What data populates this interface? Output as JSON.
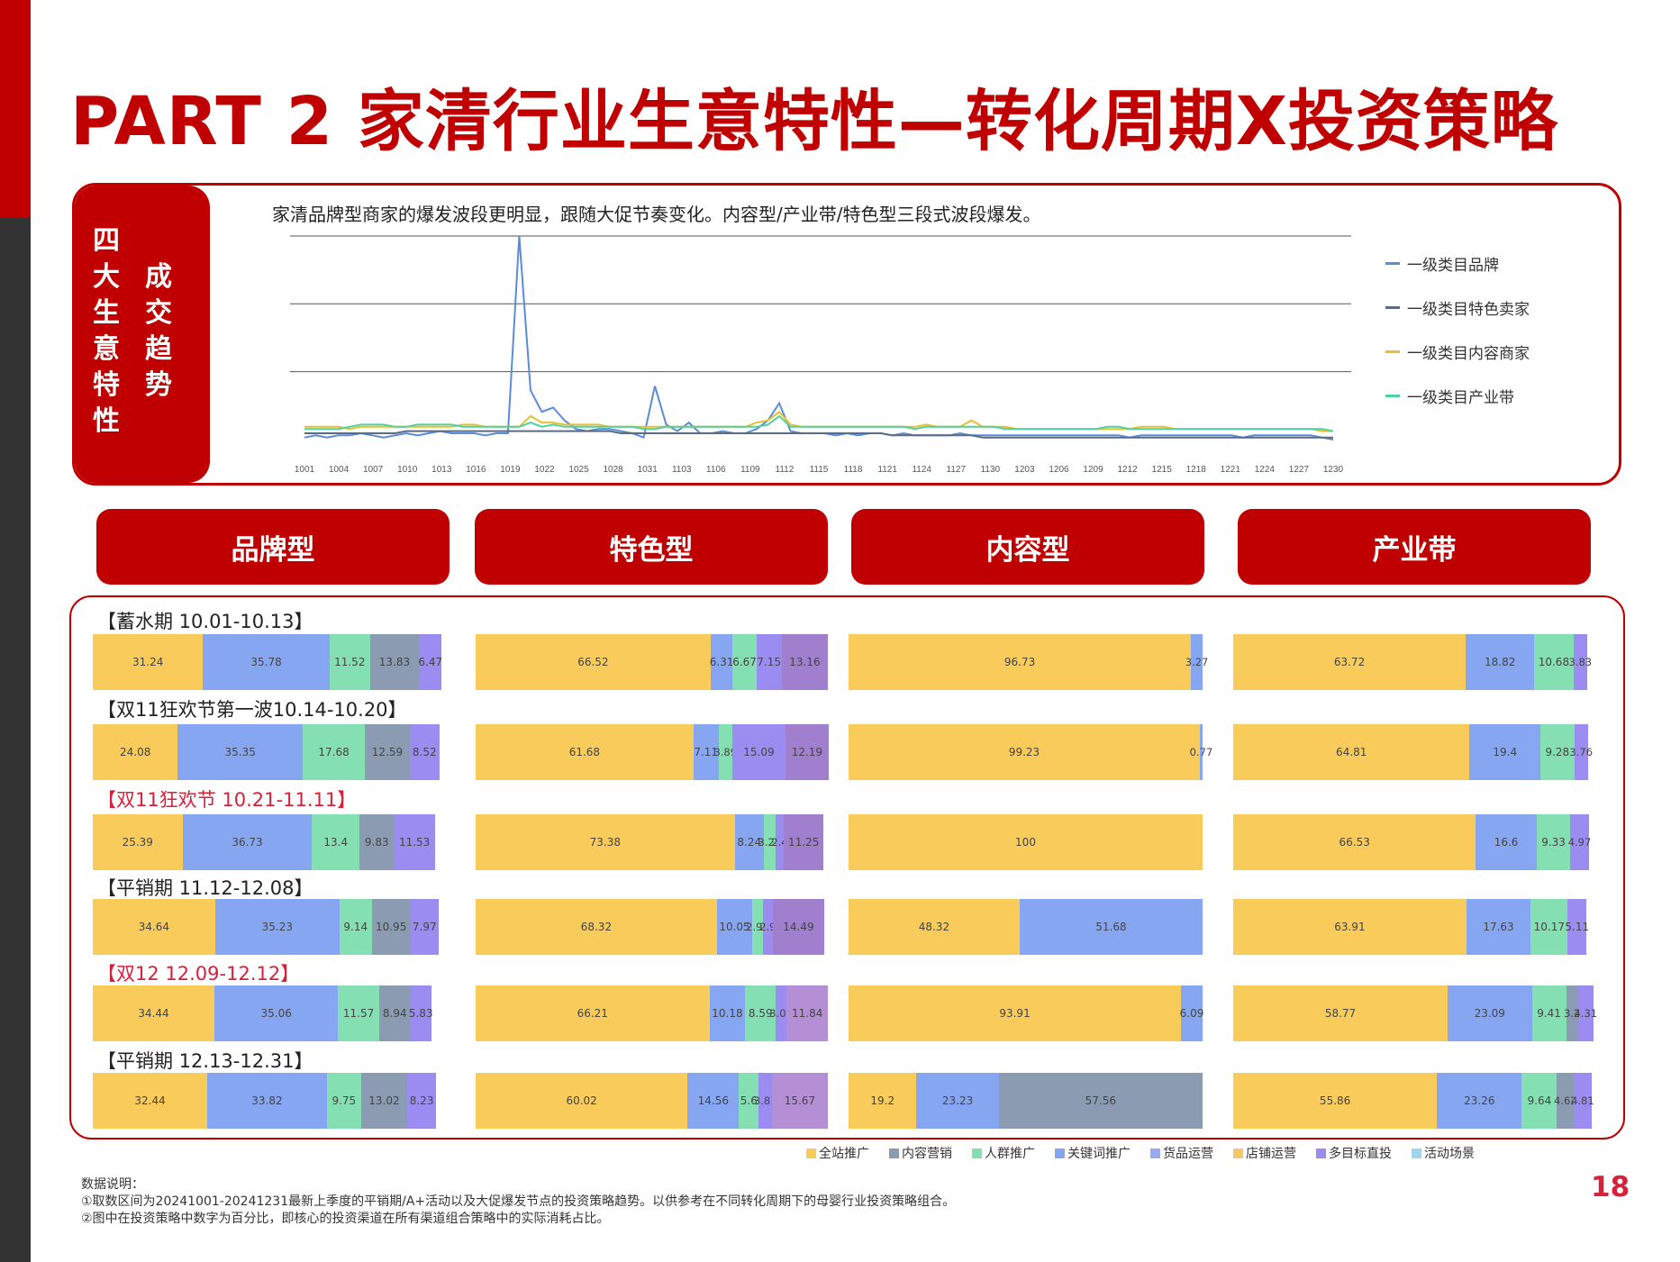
{
  "title": "PART 2 家清行业生意特性—转化周期X投资策略",
  "side_tab": {
    "col1": "四大生意特性",
    "col2": "成交趋势"
  },
  "colors": {
    "brand_red": "#c00000",
    "accent_red": "#d5213a",
    "全站推广": "#f8cb5b",
    "内容营销": "#8a9bb2",
    "人群推广": "#84e0b2",
    "关键词推广": "#86a6f2",
    "货品运营": "#9aabf5",
    "店铺运营": "#f7c66a",
    "多目标直投": "#9a8cf0",
    "活动场景": "#9fd6ef"
  },
  "trend_chart": {
    "caption": "家清品牌型商家的爆发波段更明显，跟随大促节奏变化。内容型/产业带/特色型三段式波段爆发。",
    "type": "line",
    "x_tick_labels": [
      "1001",
      "1004",
      "1007",
      "1010",
      "1013",
      "1016",
      "1019",
      "1022",
      "1025",
      "1028",
      "1031",
      "1103",
      "1106",
      "1109",
      "1112",
      "1115",
      "1118",
      "1121",
      "1124",
      "1127",
      "1130",
      "1203",
      "1206",
      "1209",
      "1212",
      "1215",
      "1218",
      "1221",
      "1224",
      "1227",
      "1230"
    ],
    "grid": true,
    "legend_position": "right",
    "ylim": [
      0,
      100
    ],
    "series": [
      {
        "name": "一级类目品牌",
        "color": "#5b8bdb",
        "values": [
          6,
          7,
          6,
          7,
          7,
          8,
          7,
          6,
          7,
          8,
          7,
          8,
          9,
          8,
          8,
          8,
          7,
          8,
          8,
          100,
          28,
          18,
          20,
          14,
          10,
          9,
          10,
          10,
          9,
          8,
          6,
          30,
          12,
          9,
          13,
          8,
          8,
          9,
          8,
          8,
          10,
          14,
          22,
          9,
          8,
          8,
          8,
          7,
          8,
          7,
          8,
          8,
          7,
          8,
          7,
          7,
          7,
          7,
          8,
          7,
          7,
          7,
          7,
          7,
          7,
          7,
          7,
          7,
          7,
          7,
          7,
          7,
          7,
          6,
          7,
          7,
          7,
          7,
          7,
          7,
          7,
          7,
          7,
          6,
          7,
          7,
          7,
          7,
          7,
          7,
          6,
          5
        ]
      },
      {
        "name": "一级类目特色卖家",
        "color": "#5c6b80",
        "values": [
          8,
          8,
          8,
          8,
          8,
          8,
          8,
          8,
          8,
          9,
          9,
          9,
          9,
          9,
          9,
          9,
          9,
          9,
          9,
          9,
          9,
          9,
          9,
          9,
          9,
          9,
          9,
          9,
          8,
          8,
          8,
          8,
          8,
          8,
          8,
          8,
          8,
          8,
          8,
          8,
          8,
          8,
          8,
          8,
          8,
          8,
          8,
          8,
          8,
          8,
          8,
          8,
          7,
          7,
          7,
          7,
          7,
          7,
          7,
          7,
          6,
          6,
          6,
          6,
          6,
          6,
          6,
          6,
          6,
          6,
          6,
          6,
          6,
          6,
          6,
          6,
          6,
          6,
          6,
          6,
          6,
          6,
          6,
          6,
          6,
          6,
          6,
          6,
          6,
          6,
          6,
          6
        ]
      },
      {
        "name": "一级类目内容商家",
        "color": "#e8c02f",
        "values": [
          11,
          11,
          11,
          11,
          10,
          11,
          11,
          11,
          11,
          11,
          11,
          11,
          11,
          11,
          12,
          12,
          11,
          11,
          11,
          11,
          16,
          13,
          13,
          12,
          12,
          12,
          12,
          11,
          11,
          11,
          11,
          11,
          11,
          11,
          11,
          11,
          11,
          11,
          11,
          11,
          13,
          14,
          18,
          12,
          11,
          11,
          11,
          11,
          11,
          11,
          11,
          11,
          11,
          11,
          11,
          12,
          11,
          11,
          11,
          14,
          11,
          11,
          11,
          10,
          10,
          10,
          10,
          10,
          10,
          10,
          10,
          10,
          10,
          10,
          11,
          11,
          11,
          10,
          10,
          10,
          10,
          10,
          10,
          10,
          10,
          10,
          10,
          10,
          10,
          10,
          9,
          9
        ]
      },
      {
        "name": "一级类目产业带",
        "color": "#4fd1a0",
        "values": [
          10,
          10,
          10,
          10,
          11,
          12,
          12,
          12,
          11,
          11,
          12,
          12,
          12,
          12,
          11,
          11,
          11,
          11,
          11,
          11,
          13,
          11,
          12,
          11,
          11,
          11,
          11,
          11,
          11,
          11,
          10,
          10,
          11,
          11,
          11,
          11,
          11,
          11,
          11,
          11,
          11,
          12,
          16,
          11,
          11,
          11,
          11,
          11,
          11,
          11,
          11,
          11,
          11,
          11,
          10,
          11,
          11,
          11,
          11,
          11,
          11,
          11,
          10,
          10,
          10,
          10,
          10,
          10,
          10,
          10,
          10,
          11,
          11,
          10,
          10,
          10,
          10,
          10,
          10,
          10,
          10,
          10,
          10,
          10,
          10,
          10,
          10,
          10,
          10,
          10,
          10,
          9
        ]
      }
    ]
  },
  "categories": [
    "品牌型",
    "特色型",
    "内容型",
    "产业带"
  ],
  "chart_data": {
    "type": "bar",
    "stacked": true,
    "orientation": "horizontal",
    "unit": "%",
    "segment_legend": [
      "全站推广",
      "内容营销",
      "人群推广",
      "关键词推广",
      "货品运营",
      "店铺运营",
      "多目标直投",
      "活动场景"
    ],
    "periods": [
      {
        "label": "【蓄水期 10.01-10.13】",
        "highlight": false,
        "values": {
          "品牌型": [
            {
              "value": 31.24,
              "color": "#f8cb5b"
            },
            {
              "value": 35.78,
              "color": "#86a6f2"
            },
            {
              "value": 11.52,
              "color": "#84e0b2"
            },
            {
              "value": 13.83,
              "color": "#8a9bb2"
            },
            {
              "value": 6.47,
              "color": "#9a8cf0"
            }
          ],
          "特色型": [
            {
              "value": 66.52,
              "color": "#f8cb5b"
            },
            {
              "value": 6.31,
              "color": "#86a6f2"
            },
            {
              "value": 6.67,
              "color": "#84e0b2"
            },
            {
              "value": 7.15,
              "color": "#9a8cf0"
            },
            {
              "value": 13.16,
              "color": "#a17fcf"
            }
          ],
          "内容型": [
            {
              "value": 96.73,
              "color": "#f8cb5b"
            },
            {
              "value": 3.27,
              "color": "#86a6f2"
            }
          ],
          "产业带": [
            {
              "value": 63.72,
              "color": "#f8cb5b"
            },
            {
              "value": 18.82,
              "color": "#86a6f2"
            },
            {
              "value": 10.68,
              "color": "#84e0b2"
            },
            {
              "value": 3.83,
              "color": "#9a8cf0"
            }
          ]
        }
      },
      {
        "label": "【双11狂欢节第一波10.14-10.20】",
        "highlight": false,
        "values": {
          "品牌型": [
            {
              "value": 24.08,
              "color": "#f8cb5b"
            },
            {
              "value": 35.35,
              "color": "#86a6f2"
            },
            {
              "value": 17.68,
              "color": "#84e0b2"
            },
            {
              "value": 12.59,
              "color": "#8a9bb2"
            },
            {
              "value": 8.52,
              "color": "#9a8cf0"
            }
          ],
          "特色型": [
            {
              "value": 61.68,
              "color": "#f8cb5b"
            },
            {
              "value": 7.11,
              "color": "#86a6f2"
            },
            {
              "value": 3.89,
              "color": "#84e0b2"
            },
            {
              "value": 15.09,
              "color": "#9a8cf0"
            },
            {
              "value": 12.19,
              "color": "#a17fcf"
            }
          ],
          "内容型": [
            {
              "value": 99.23,
              "color": "#f8cb5b"
            },
            {
              "value": 0.77,
              "color": "#86a6f2"
            }
          ],
          "产业带": [
            {
              "value": 64.81,
              "color": "#f8cb5b"
            },
            {
              "value": 19.4,
              "color": "#86a6f2"
            },
            {
              "value": 9.28,
              "color": "#84e0b2"
            },
            {
              "value": 3.76,
              "color": "#9a8cf0"
            }
          ]
        }
      },
      {
        "label": "【双11狂欢节 10.21-11.11】",
        "highlight": true,
        "values": {
          "品牌型": [
            {
              "value": 25.39,
              "color": "#f8cb5b"
            },
            {
              "value": 36.73,
              "color": "#86a6f2"
            },
            {
              "value": 13.4,
              "color": "#84e0b2"
            },
            {
              "value": 9.83,
              "color": "#8a9bb2"
            },
            {
              "value": 11.53,
              "color": "#9a8cf0"
            }
          ],
          "特色型": [
            {
              "value": 73.38,
              "color": "#f8cb5b"
            },
            {
              "value": 8.24,
              "color": "#86a6f2"
            },
            {
              "value": 3.28,
              "color": "#84e0b2"
            },
            {
              "value": 2.4,
              "color": "#9a8cf0"
            },
            {
              "value": 11.25,
              "color": "#a17fcf"
            }
          ],
          "内容型": [
            {
              "value": 100,
              "color": "#f8cb5b"
            }
          ],
          "产业带": [
            {
              "value": 66.53,
              "color": "#f8cb5b"
            },
            {
              "value": 16.6,
              "color": "#86a6f2"
            },
            {
              "value": 9.33,
              "color": "#84e0b2"
            },
            {
              "value": 4.97,
              "color": "#9a8cf0"
            }
          ]
        }
      },
      {
        "label": "【平销期 11.12-12.08】",
        "highlight": false,
        "values": {
          "品牌型": [
            {
              "value": 34.64,
              "color": "#f8cb5b"
            },
            {
              "value": 35.23,
              "color": "#86a6f2"
            },
            {
              "value": 9.14,
              "color": "#84e0b2"
            },
            {
              "value": 10.95,
              "color": "#8a9bb2"
            },
            {
              "value": 7.97,
              "color": "#9a8cf0"
            }
          ],
          "特色型": [
            {
              "value": 68.32,
              "color": "#f8cb5b"
            },
            {
              "value": 10.05,
              "color": "#86a6f2"
            },
            {
              "value": 2.93,
              "color": "#84e0b2"
            },
            {
              "value": 2.9,
              "color": "#9a8cf0"
            },
            {
              "value": 14.49,
              "color": "#a17fcf"
            }
          ],
          "内容型": [
            {
              "value": 48.32,
              "color": "#f8cb5b"
            },
            {
              "value": 51.68,
              "color": "#86a6f2"
            }
          ],
          "产业带": [
            {
              "value": 63.91,
              "color": "#f8cb5b"
            },
            {
              "value": 17.63,
              "color": "#86a6f2"
            },
            {
              "value": 10.17,
              "color": "#84e0b2"
            },
            {
              "value": 5.11,
              "color": "#9a8cf0"
            }
          ]
        }
      },
      {
        "label": "【双12 12.09-12.12】",
        "highlight": true,
        "values": {
          "品牌型": [
            {
              "value": 34.44,
              "color": "#f8cb5b"
            },
            {
              "value": 35.06,
              "color": "#86a6f2"
            },
            {
              "value": 11.57,
              "color": "#84e0b2"
            },
            {
              "value": 8.94,
              "color": "#8a9bb2"
            },
            {
              "value": 5.83,
              "color": "#9a8cf0"
            }
          ],
          "特色型": [
            {
              "value": 66.21,
              "color": "#f8cb5b"
            },
            {
              "value": 10.18,
              "color": "#86a6f2"
            },
            {
              "value": 8.59,
              "color": "#84e0b2"
            },
            {
              "value": 3.04,
              "color": "#9a8cf0"
            },
            {
              "value": 11.84,
              "color": "#b58fd6"
            }
          ],
          "内容型": [
            {
              "value": 93.91,
              "color": "#f8cb5b"
            },
            {
              "value": 6.09,
              "color": "#86a6f2"
            }
          ],
          "产业带": [
            {
              "value": 58.77,
              "color": "#f8cb5b"
            },
            {
              "value": 23.09,
              "color": "#86a6f2"
            },
            {
              "value": 9.41,
              "color": "#84e0b2"
            },
            {
              "value": 3.2,
              "color": "#8a9bb2"
            },
            {
              "value": 4.31,
              "color": "#9a8cf0"
            }
          ]
        }
      },
      {
        "label": "【平销期 12.13-12.31】",
        "highlight": false,
        "values": {
          "品牌型": [
            {
              "value": 32.44,
              "color": "#f8cb5b"
            },
            {
              "value": 33.82,
              "color": "#86a6f2"
            },
            {
              "value": 9.75,
              "color": "#84e0b2"
            },
            {
              "value": 13.02,
              "color": "#8a9bb2"
            },
            {
              "value": 8.23,
              "color": "#9a8cf0"
            }
          ],
          "特色型": [
            {
              "value": 60.02,
              "color": "#f8cb5b"
            },
            {
              "value": 14.56,
              "color": "#86a6f2"
            },
            {
              "value": 5.6,
              "color": "#84e0b2"
            },
            {
              "value": 3.81,
              "color": "#9a8cf0"
            },
            {
              "value": 15.67,
              "color": "#b58fd6"
            }
          ],
          "内容型": [
            {
              "value": 19.2,
              "color": "#f8cb5b"
            },
            {
              "value": 23.23,
              "color": "#86a6f2"
            },
            {
              "value": 57.56,
              "color": "#8a9bb2"
            }
          ],
          "产业带": [
            {
              "value": 55.86,
              "color": "#f8cb5b"
            },
            {
              "value": 23.26,
              "color": "#86a6f2"
            },
            {
              "value": 9.64,
              "color": "#84e0b2"
            },
            {
              "value": 4.62,
              "color": "#8a9bb2"
            },
            {
              "value": 4.81,
              "color": "#9a8cf0"
            }
          ]
        }
      }
    ]
  },
  "notes": {
    "heading": "数据说明：",
    "line1": "①取数区间为20241001-20241231最新上季度的平销期/A+活动以及大促爆发节点的投资策略趋势。以供参考在不同转化周期下的母婴行业投资策略组合。",
    "line2": "②图中在投资策略中数字为百分比，即核心的投资渠道在所有渠道组合策略中的实际消耗占比。"
  },
  "page_number": "18"
}
